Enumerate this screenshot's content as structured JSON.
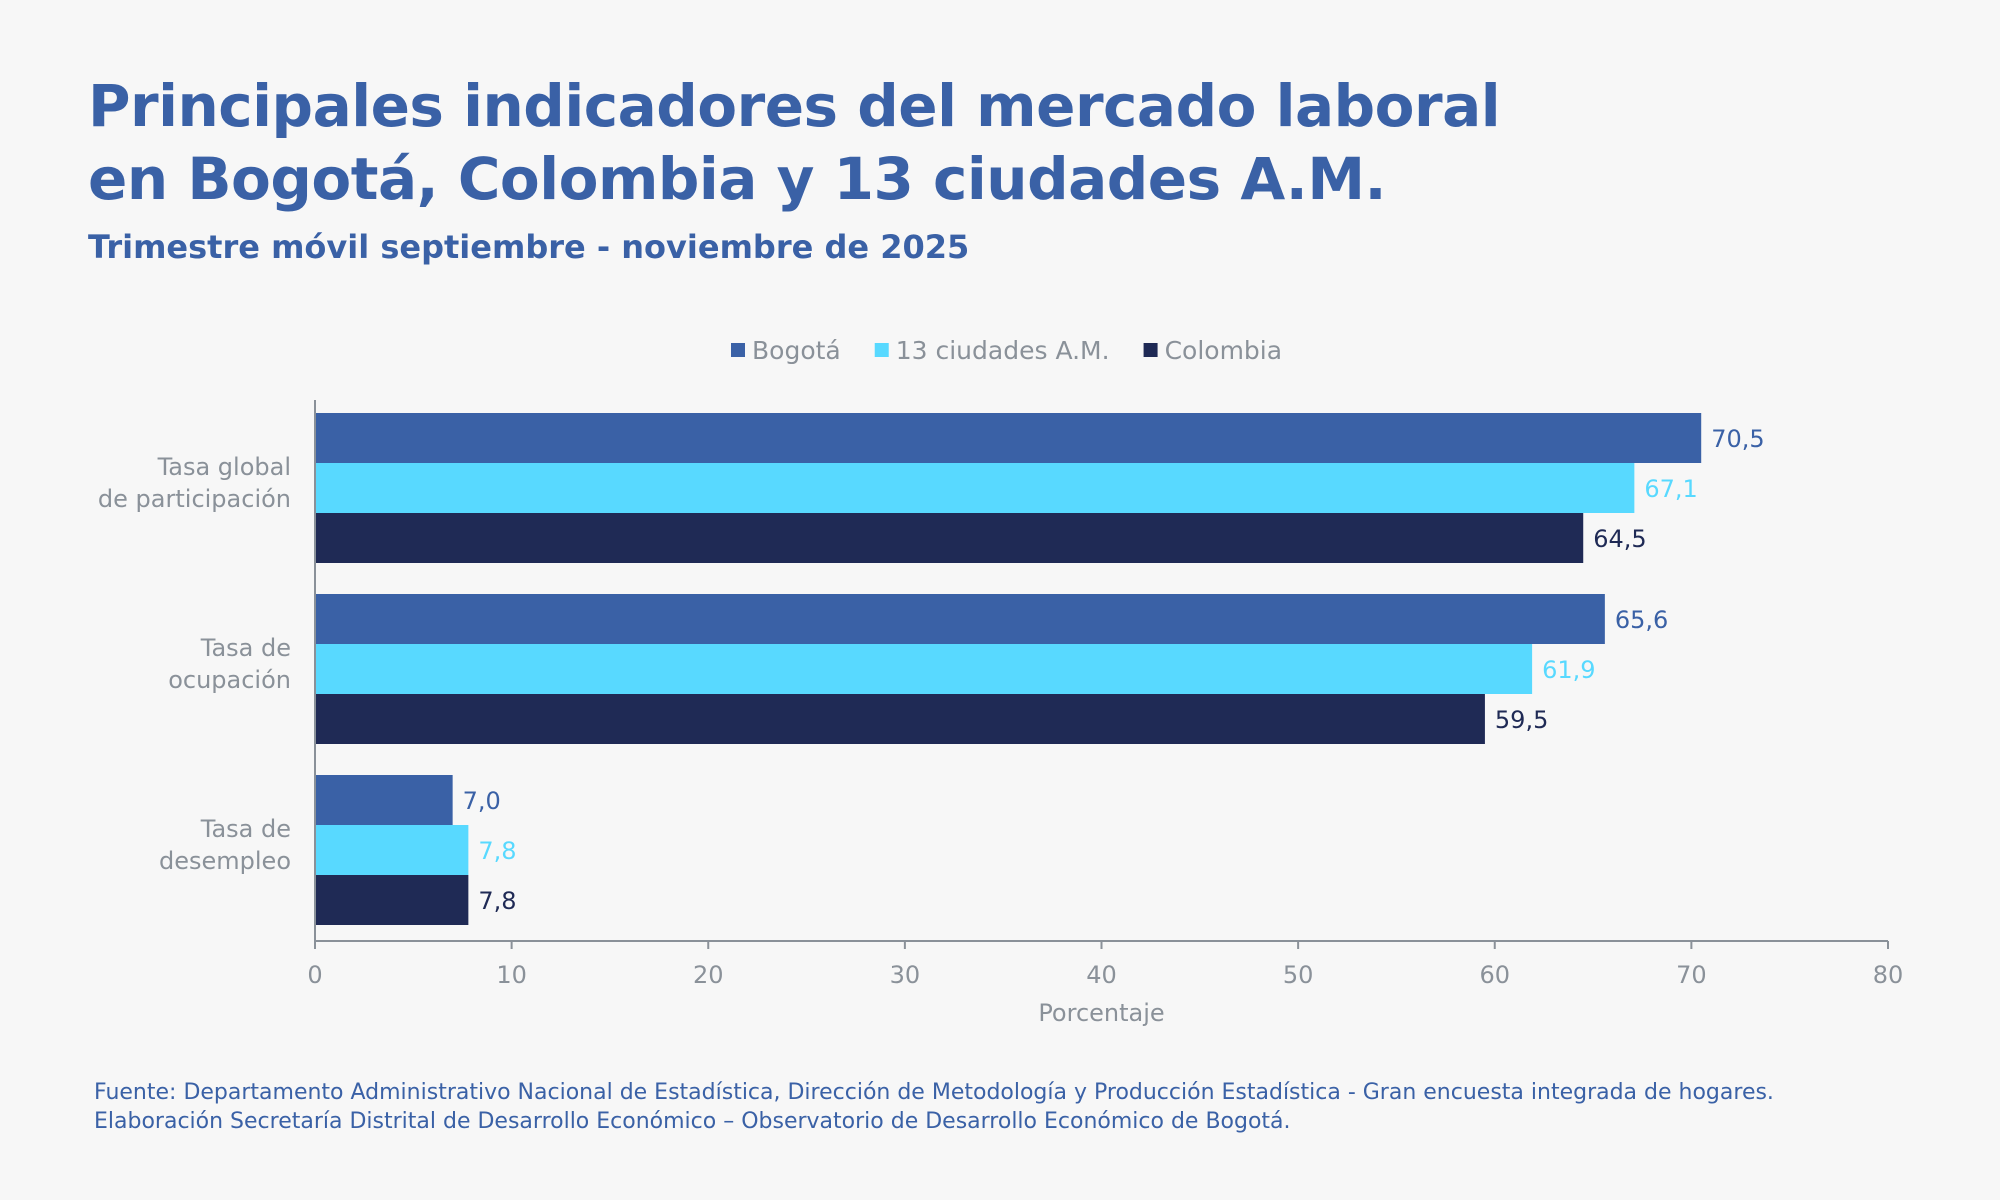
{
  "title_lines": [
    "Principales indicadores del mercado laboral",
    "en Bogotá, Colombia y 13 ciudades A.M."
  ],
  "subtitle": "Trimestre móvil septiembre - noviembre de 2025",
  "footer": {
    "line1": "Fuente: Departamento Administrativo Nacional de Estadística, Dirección de Metodología y Producción Estadística - Gran encuesta integrada de hogares.",
    "line2": "Elaboración Secretaría Distrital de Desarrollo Económico – Observatorio de Desarrollo Económico de Bogotá."
  },
  "colors": {
    "title": "#3a61a6",
    "axis_text": "#8a9199",
    "axis_line": "#8a9199",
    "background": "#f7f7f7"
  },
  "chart_data": {
    "type": "bar",
    "orientation": "horizontal",
    "categories": [
      [
        "Tasa global",
        "de participación"
      ],
      [
        "Tasa de",
        "ocupación"
      ],
      [
        "Tasa de",
        "desempleo"
      ]
    ],
    "series": [
      {
        "name": "Bogotá",
        "color": "#3a61a6",
        "label_color": "#3a61a6",
        "values": [
          70.5,
          65.6,
          7.0
        ],
        "labels": [
          "70,5",
          "65,6",
          "7,0"
        ]
      },
      {
        "name": "13 ciudades A.M.",
        "color": "#58d9ff",
        "label_color": "#58d9ff",
        "values": [
          67.1,
          61.9,
          7.8
        ],
        "labels": [
          "67,1",
          "61,9",
          "7,8"
        ]
      },
      {
        "name": "Colombia",
        "color": "#1f2a55",
        "label_color": "#1f2a55",
        "values": [
          64.5,
          59.5,
          7.8
        ],
        "labels": [
          "64,5",
          "59,5",
          "7,8"
        ]
      }
    ],
    "xlim": [
      0,
      80
    ],
    "xticks": [
      0,
      10,
      20,
      30,
      40,
      50,
      60,
      70,
      80
    ],
    "xlabel": "Porcentaje",
    "ylabel": "",
    "legend_position": "top-center",
    "grid": false
  }
}
